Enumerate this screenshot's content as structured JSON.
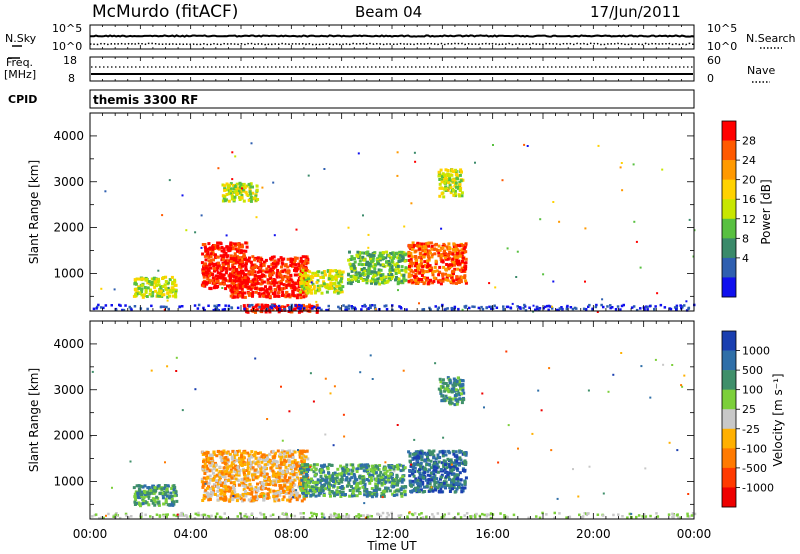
{
  "header": {
    "station": "McMurdo (fitACF)",
    "beam": "Beam 04",
    "date": "17/Jun/2011"
  },
  "noise_panel": {
    "left_label": "N.Sky",
    "right_label": "N.Search",
    "left_ticks": [
      "10^5",
      "10^0"
    ],
    "right_ticks": [
      "10^5",
      "10^0"
    ]
  },
  "freq_panel": {
    "left_label_1": "Freq.",
    "left_label_2": "[MHz]",
    "right_label": "Nave",
    "left_ticks": [
      "18",
      "8"
    ],
    "right_ticks": [
      "60",
      "0"
    ]
  },
  "cpid_panel": {
    "label": "CPID",
    "text": "themis 3300 RF"
  },
  "power_panel": {
    "ylabel": "Slant Range [km]",
    "yticks": [
      "4000",
      "3000",
      "2000",
      "1000"
    ],
    "colorbar_label": "Power [dB]",
    "colorbar_ticks": [
      "28",
      "24",
      "20",
      "16",
      "12",
      "8",
      "4"
    ],
    "colorbar_colors": [
      "#ff0000",
      "#ff5a00",
      "#ff9900",
      "#ffd200",
      "#c8e600",
      "#58c040",
      "#3a8a6a",
      "#2f5fb0",
      "#1010ee"
    ]
  },
  "velocity_panel": {
    "ylabel": "Slant Range [km]",
    "yticks": [
      "4000",
      "3000",
      "2000",
      "1000"
    ],
    "colorbar_label": "Velocity [m s⁻¹]",
    "colorbar_ticks": [
      "1000",
      "500",
      "100",
      "25",
      "-25",
      "-100",
      "-500",
      "-1000"
    ],
    "colorbar_colors": [
      "#1a3fb0",
      "#2f6fa8",
      "#3f8f6a",
      "#7ccf3a",
      "#c8c8c8",
      "#ffb000",
      "#ff7a00",
      "#ff3a00",
      "#ee0000"
    ]
  },
  "xaxis": {
    "ticks": [
      "00:00",
      "04:00",
      "08:00",
      "12:00",
      "16:00",
      "20:00",
      "00:00"
    ],
    "label": "Time UT"
  },
  "chart_data": {
    "type": "heatmap",
    "x_range_hours": [
      0,
      24
    ],
    "y_range_km": [
      180,
      4500
    ],
    "power_echo_regions": [
      {
        "t0": 1.7,
        "t1": 3.4,
        "r0": 500,
        "r1": 950,
        "level": "16"
      },
      {
        "t0": 4.4,
        "t1": 6.2,
        "r0": 700,
        "r1": 1700,
        "level": "28"
      },
      {
        "t0": 5.5,
        "t1": 8.6,
        "r0": 500,
        "r1": 1400,
        "level": "28"
      },
      {
        "t0": 8.3,
        "t1": 10.0,
        "r0": 600,
        "r1": 1100,
        "level": "16"
      },
      {
        "t0": 10.2,
        "t1": 12.5,
        "r0": 800,
        "r1": 1500,
        "level": "12"
      },
      {
        "t0": 12.6,
        "t1": 14.9,
        "r0": 800,
        "r1": 1700,
        "level": "24"
      },
      {
        "t0": 6.0,
        "t1": 9.0,
        "r0": 180,
        "r1": 350,
        "level": "28"
      },
      {
        "t0": 13.8,
        "t1": 14.8,
        "r0": 2700,
        "r1": 3300,
        "level": "16"
      },
      {
        "t0": 5.2,
        "t1": 6.6,
        "r0": 2600,
        "r1": 3000,
        "level": "16"
      }
    ],
    "velocity_echo_regions": [
      {
        "t0": 1.7,
        "t1": 3.4,
        "r0": 500,
        "r1": 950,
        "level": "100"
      },
      {
        "t0": 4.4,
        "t1": 8.6,
        "r0": 600,
        "r1": 1700,
        "level": "-100"
      },
      {
        "t0": 8.3,
        "t1": 12.5,
        "r0": 700,
        "r1": 1400,
        "level": "100"
      },
      {
        "t0": 12.6,
        "t1": 14.9,
        "r0": 800,
        "r1": 1700,
        "level": "500"
      },
      {
        "t0": 13.8,
        "t1": 14.8,
        "r0": 2700,
        "r1": 3300,
        "level": "100"
      }
    ]
  }
}
